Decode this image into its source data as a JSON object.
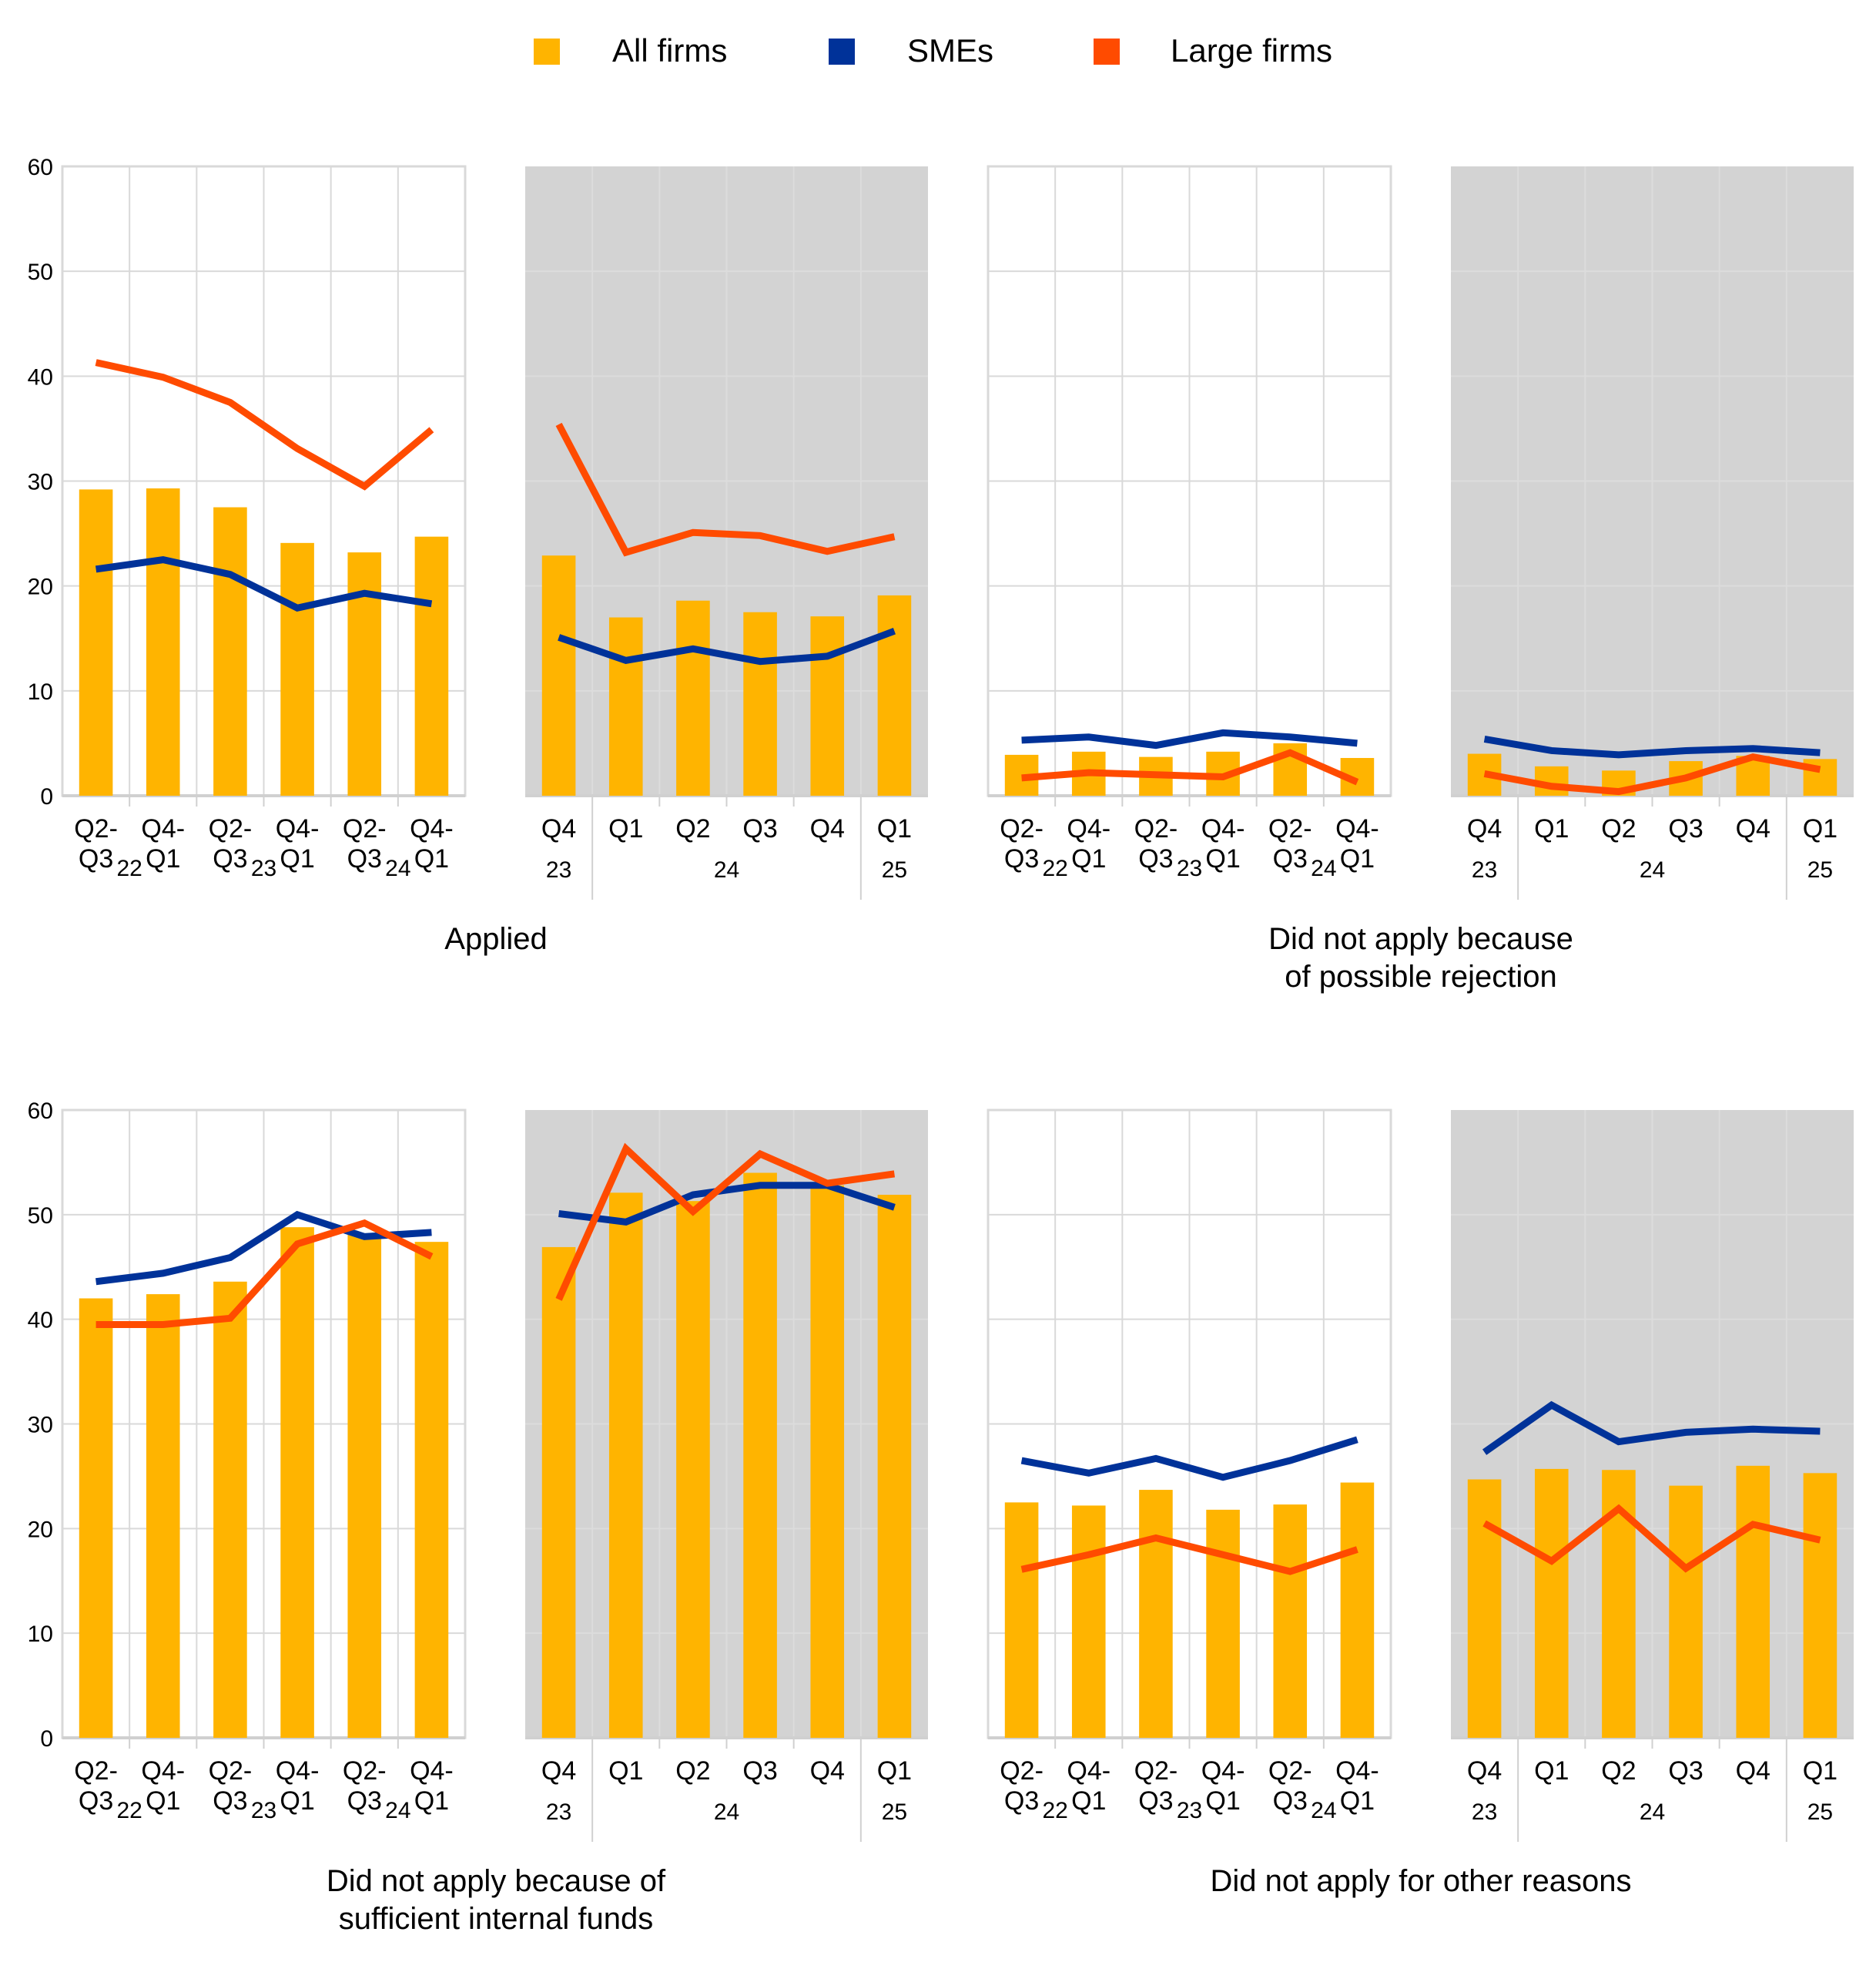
{
  "legend": [
    {
      "label": "All firms",
      "color": "#FFB400"
    },
    {
      "label": "SMEs",
      "color": "#003299"
    },
    {
      "label": "Large firms",
      "color": "#FF4B00"
    }
  ],
  "colors": {
    "shaded_panel": "#D3D3D3",
    "grid": "#D9D9D9"
  },
  "chart_data": [
    {
      "type": "bar+line",
      "group_title": "Applied",
      "panel": "half-yearly",
      "shaded": false,
      "categories": [
        "Q2-Q3",
        "Q4-Q1",
        "Q2-Q3",
        "Q4-Q1",
        "Q2-Q3",
        "Q4-Q1"
      ],
      "category_lines": [
        [
          "Q2-",
          "Q3"
        ],
        [
          "Q4-",
          "Q1"
        ],
        [
          "Q2-",
          "Q3"
        ],
        [
          "Q4-",
          "Q1"
        ],
        [
          "Q2-",
          "Q3"
        ],
        [
          "Q4-",
          "Q1"
        ]
      ],
      "years": [
        "22",
        "23",
        "24"
      ],
      "ylim": [
        0,
        60
      ],
      "yticks": [
        0,
        10,
        20,
        30,
        40,
        50,
        60
      ],
      "series": [
        {
          "name": "All firms",
          "kind": "bar",
          "values": [
            29.2,
            29.3,
            27.5,
            24.1,
            23.2,
            24.7
          ]
        },
        {
          "name": "SMEs",
          "kind": "line",
          "values": [
            21.6,
            22.5,
            21.1,
            17.9,
            19.3,
            18.3
          ]
        },
        {
          "name": "Large firms",
          "kind": "line",
          "values": [
            41.3,
            39.9,
            37.5,
            33.1,
            29.5,
            34.9
          ]
        }
      ]
    },
    {
      "type": "bar+line",
      "group_title": "Applied",
      "panel": "quarterly",
      "shaded": true,
      "categories": [
        "Q4",
        "Q1",
        "Q2",
        "Q3",
        "Q4",
        "Q1"
      ],
      "years": [
        "23",
        "24",
        "25"
      ],
      "ylim": [
        0,
        60
      ],
      "series": [
        {
          "name": "All firms",
          "kind": "bar",
          "values": [
            22.9,
            17.0,
            18.6,
            17.5,
            17.1,
            19.1
          ]
        },
        {
          "name": "SMEs",
          "kind": "line",
          "values": [
            15.1,
            12.9,
            14.0,
            12.8,
            13.3,
            15.7
          ]
        },
        {
          "name": "Large firms",
          "kind": "line",
          "values": [
            35.4,
            23.2,
            25.1,
            24.8,
            23.3,
            24.7
          ]
        }
      ]
    },
    {
      "type": "bar+line",
      "group_title": "Did not apply because of possible rejection",
      "panel": "half-yearly",
      "shaded": false,
      "categories": [
        "Q2-Q3",
        "Q4-Q1",
        "Q2-Q3",
        "Q4-Q1",
        "Q2-Q3",
        "Q4-Q1"
      ],
      "category_lines": [
        [
          "Q2-",
          "Q3"
        ],
        [
          "Q4-",
          "Q1"
        ],
        [
          "Q2-",
          "Q3"
        ],
        [
          "Q4-",
          "Q1"
        ],
        [
          "Q2-",
          "Q3"
        ],
        [
          "Q4-",
          "Q1"
        ]
      ],
      "years": [
        "22",
        "23",
        "24"
      ],
      "ylim": [
        0,
        60
      ],
      "series": [
        {
          "name": "All firms",
          "kind": "bar",
          "values": [
            3.9,
            4.2,
            3.7,
            4.2,
            5.0,
            3.6
          ]
        },
        {
          "name": "SMEs",
          "kind": "line",
          "values": [
            5.3,
            5.6,
            4.8,
            6.0,
            5.6,
            5.0
          ]
        },
        {
          "name": "Large firms",
          "kind": "line",
          "values": [
            1.7,
            2.2,
            2.0,
            1.8,
            4.1,
            1.3
          ]
        }
      ]
    },
    {
      "type": "bar+line",
      "group_title": "Did not apply because of possible rejection",
      "panel": "quarterly",
      "shaded": true,
      "categories": [
        "Q4",
        "Q1",
        "Q2",
        "Q3",
        "Q4",
        "Q1"
      ],
      "years": [
        "23",
        "24",
        "25"
      ],
      "ylim": [
        0,
        60
      ],
      "series": [
        {
          "name": "All firms",
          "kind": "bar",
          "values": [
            4.0,
            2.8,
            2.4,
            3.3,
            3.8,
            3.5
          ]
        },
        {
          "name": "SMEs",
          "kind": "line",
          "values": [
            5.4,
            4.3,
            3.9,
            4.3,
            4.5,
            4.1
          ]
        },
        {
          "name": "Large firms",
          "kind": "line",
          "values": [
            2.1,
            0.9,
            0.4,
            1.7,
            3.7,
            2.5
          ]
        }
      ]
    },
    {
      "type": "bar+line",
      "group_title": "Did not apply because of sufficient internal funds",
      "panel": "half-yearly",
      "shaded": false,
      "categories": [
        "Q2-Q3",
        "Q4-Q1",
        "Q2-Q3",
        "Q4-Q1",
        "Q2-Q3",
        "Q4-Q1"
      ],
      "category_lines": [
        [
          "Q2-",
          "Q3"
        ],
        [
          "Q4-",
          "Q1"
        ],
        [
          "Q2-",
          "Q3"
        ],
        [
          "Q4-",
          "Q1"
        ],
        [
          "Q2-",
          "Q3"
        ],
        [
          "Q4-",
          "Q1"
        ]
      ],
      "years": [
        "22",
        "23",
        "24"
      ],
      "ylim": [
        0,
        60
      ],
      "yticks": [
        0,
        10,
        20,
        30,
        40,
        50,
        60
      ],
      "series": [
        {
          "name": "All firms",
          "kind": "bar",
          "values": [
            42.0,
            42.4,
            43.6,
            48.8,
            48.2,
            47.4
          ]
        },
        {
          "name": "SMEs",
          "kind": "line",
          "values": [
            43.6,
            44.4,
            45.9,
            50.0,
            47.9,
            48.3
          ]
        },
        {
          "name": "Large firms",
          "kind": "line",
          "values": [
            39.5,
            39.5,
            40.1,
            47.2,
            49.2,
            46.0
          ]
        }
      ]
    },
    {
      "type": "bar+line",
      "group_title": "Did not apply because of sufficient internal funds",
      "panel": "quarterly",
      "shaded": true,
      "categories": [
        "Q4",
        "Q1",
        "Q2",
        "Q3",
        "Q4",
        "Q1"
      ],
      "years": [
        "23",
        "24",
        "25"
      ],
      "ylim": [
        0,
        60
      ],
      "series": [
        {
          "name": "All firms",
          "kind": "bar",
          "values": [
            46.9,
            52.1,
            51.3,
            54.0,
            52.8,
            51.9
          ]
        },
        {
          "name": "SMEs",
          "kind": "line",
          "values": [
            50.1,
            49.3,
            51.9,
            52.8,
            52.8,
            50.7
          ]
        },
        {
          "name": "Large firms",
          "kind": "line",
          "values": [
            41.9,
            56.3,
            50.3,
            55.8,
            53.0,
            53.9
          ]
        }
      ]
    },
    {
      "type": "bar+line",
      "group_title": "Did not apply for other reasons",
      "panel": "half-yearly",
      "shaded": false,
      "categories": [
        "Q2-Q3",
        "Q4-Q1",
        "Q2-Q3",
        "Q4-Q1",
        "Q2-Q3",
        "Q4-Q1"
      ],
      "category_lines": [
        [
          "Q2-",
          "Q3"
        ],
        [
          "Q4-",
          "Q1"
        ],
        [
          "Q2-",
          "Q3"
        ],
        [
          "Q4-",
          "Q1"
        ],
        [
          "Q2-",
          "Q3"
        ],
        [
          "Q4-",
          "Q1"
        ]
      ],
      "years": [
        "22",
        "23",
        "24"
      ],
      "ylim": [
        0,
        60
      ],
      "series": [
        {
          "name": "All firms",
          "kind": "bar",
          "values": [
            22.5,
            22.2,
            23.7,
            21.8,
            22.3,
            24.4
          ]
        },
        {
          "name": "SMEs",
          "kind": "line",
          "values": [
            26.5,
            25.3,
            26.7,
            24.9,
            26.5,
            28.5
          ]
        },
        {
          "name": "Large firms",
          "kind": "line",
          "values": [
            16.1,
            17.5,
            19.1,
            17.5,
            15.9,
            18.0
          ]
        }
      ]
    },
    {
      "type": "bar+line",
      "group_title": "Did not apply for other reasons",
      "panel": "quarterly",
      "shaded": true,
      "categories": [
        "Q4",
        "Q1",
        "Q2",
        "Q3",
        "Q4",
        "Q1"
      ],
      "years": [
        "23",
        "24",
        "25"
      ],
      "ylim": [
        0,
        60
      ],
      "series": [
        {
          "name": "All firms",
          "kind": "bar",
          "values": [
            24.7,
            25.7,
            25.6,
            24.1,
            26.0,
            25.3
          ]
        },
        {
          "name": "SMEs",
          "kind": "line",
          "values": [
            27.3,
            31.8,
            28.3,
            29.2,
            29.5,
            29.3
          ]
        },
        {
          "name": "Large firms",
          "kind": "line",
          "values": [
            20.5,
            16.9,
            21.9,
            16.2,
            20.4,
            18.9
          ]
        }
      ]
    }
  ],
  "titles": [
    {
      "lines": [
        "Applied"
      ]
    },
    {
      "lines": [
        "Did not apply because",
        "of possible rejection"
      ]
    },
    {
      "lines": [
        "Did not apply because of",
        "sufficient internal funds"
      ]
    },
    {
      "lines": [
        "Did not apply for other reasons"
      ]
    }
  ]
}
